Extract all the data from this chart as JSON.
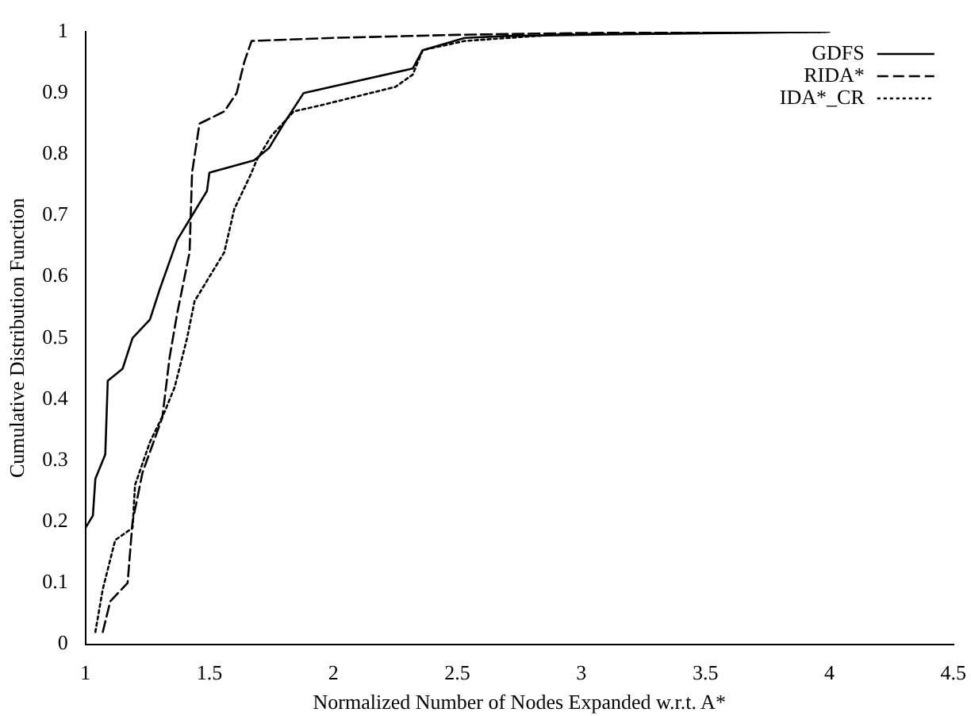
{
  "chart_data": {
    "type": "line",
    "xlabel": "Normalized Number of Nodes Expanded w.r.t. A*",
    "ylabel": "Cumulative Distribution Function",
    "xlim": [
      1,
      4.5
    ],
    "ylim": [
      0,
      1
    ],
    "xticks": [
      1,
      1.5,
      2,
      2.5,
      3,
      3.5,
      4,
      4.5
    ],
    "yticks": [
      0,
      0.1,
      0.2,
      0.3,
      0.4,
      0.5,
      0.6,
      0.7,
      0.8,
      0.9,
      1
    ],
    "grid": false,
    "legend": "top right",
    "marker": "none",
    "series": [
      {
        "name": "GDFS",
        "color": "#000000",
        "line_style": "solid",
        "x": [
          1,
          1.03,
          1.04,
          1.08,
          1.09,
          1.15,
          1.19,
          1.26,
          1.3,
          1.37,
          1.43,
          1.49,
          1.5,
          1.68,
          1.74,
          1.8,
          1.88,
          2.32,
          2.36,
          2.53,
          2.7,
          3,
          4
        ],
        "values": [
          0.19,
          0.21,
          0.27,
          0.31,
          0.43,
          0.45,
          0.5,
          0.53,
          0.58,
          0.66,
          0.7,
          0.74,
          0.77,
          0.79,
          0.81,
          0.85,
          0.9,
          0.94,
          0.97,
          0.99,
          0.993,
          0.995,
          1
        ]
      },
      {
        "name": "RIDA*",
        "color": "#000000",
        "line_style": "dashed",
        "x": [
          1.07,
          1.1,
          1.17,
          1.19,
          1.23,
          1.31,
          1.34,
          1.37,
          1.42,
          1.43,
          1.46,
          1.56,
          1.61,
          1.64,
          1.67,
          2,
          2.5,
          3,
          4
        ],
        "values": [
          0.02,
          0.07,
          0.1,
          0.2,
          0.28,
          0.37,
          0.47,
          0.54,
          0.64,
          0.77,
          0.85,
          0.87,
          0.9,
          0.95,
          0.985,
          0.99,
          0.995,
          0.998,
          1
        ]
      },
      {
        "name": "IDA*_CR",
        "color": "#000000",
        "line_style": "dotted",
        "x": [
          1.04,
          1.07,
          1.12,
          1.19,
          1.2,
          1.26,
          1.32,
          1.36,
          1.41,
          1.44,
          1.5,
          1.56,
          1.6,
          1.67,
          1.69,
          1.75,
          1.84,
          1.95,
          2.25,
          2.32,
          2.36,
          2.53,
          2.92,
          4
        ],
        "values": [
          0.02,
          0.09,
          0.17,
          0.19,
          0.26,
          0.33,
          0.38,
          0.42,
          0.5,
          0.56,
          0.6,
          0.64,
          0.71,
          0.77,
          0.79,
          0.83,
          0.87,
          0.88,
          0.91,
          0.93,
          0.97,
          0.985,
          0.996,
          1
        ]
      }
    ]
  }
}
